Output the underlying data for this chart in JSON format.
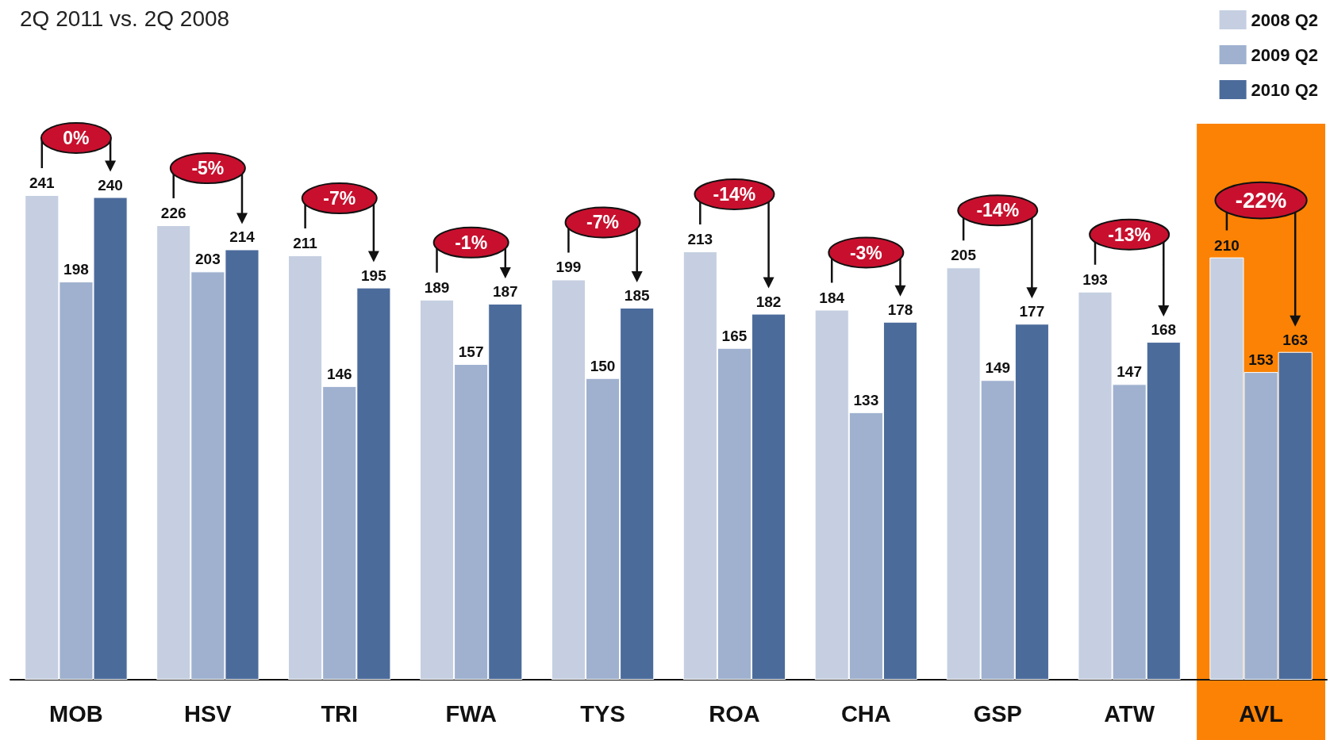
{
  "chart_data": {
    "type": "bar",
    "title": "2Q 2011 vs. 2Q 2008",
    "categories": [
      "MOB",
      "HSV",
      "TRI",
      "FWA",
      "TYS",
      "ROA",
      "CHA",
      "GSP",
      "ATW",
      "AVL"
    ],
    "series": [
      {
        "name": "2008 Q2",
        "color": "#c5cfe1",
        "values": [
          241,
          226,
          211,
          189,
          199,
          213,
          184,
          205,
          193,
          210
        ]
      },
      {
        "name": "2009 Q2",
        "color": "#9fb1cf",
        "values": [
          198,
          203,
          146,
          157,
          150,
          165,
          133,
          149,
          147,
          153
        ]
      },
      {
        "name": "2010 Q2",
        "color": "#4b6b9b",
        "values": [
          240,
          214,
          195,
          187,
          185,
          182,
          178,
          177,
          168,
          163
        ]
      }
    ],
    "data_labels": true,
    "legend": "top right",
    "grid": false,
    "bands": [
      {
        "axis": "x",
        "from": "AVL",
        "to": "AVL",
        "color": "#fb8204"
      }
    ],
    "annotations": [
      "0%",
      "-5%",
      "-7%",
      "-1%",
      "-7%",
      "-14%",
      "-3%",
      "-14%",
      "-13%",
      "-22%"
    ]
  }
}
